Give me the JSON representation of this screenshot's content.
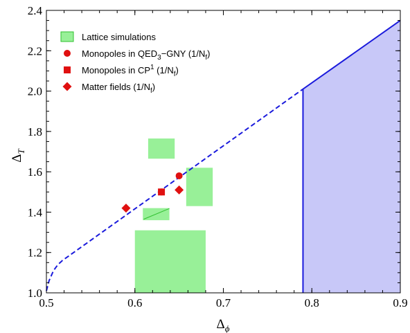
{
  "chart_data": {
    "type": "scatter",
    "xlim": [
      0.5,
      0.9
    ],
    "ylim": [
      1.0,
      2.4
    ],
    "xticks": [
      0.5,
      0.6,
      0.7,
      0.8,
      0.9
    ],
    "xtick_labels": [
      "0.5",
      "0.6",
      "0.7",
      "0.8",
      "0.9"
    ],
    "yticks": [
      1.0,
      1.2,
      1.4,
      1.6,
      1.8,
      2.0,
      2.2,
      2.4
    ],
    "ytick_labels": [
      "1.0",
      "1.2",
      "1.4",
      "1.6",
      "1.8",
      "2.0",
      "2.2",
      "2.4"
    ],
    "minor_x_step": 0.02,
    "minor_y_step": 0.05,
    "xlabel_main": "Δ",
    "xlabel_sub": "ϕ",
    "ylabel_main": "Δ",
    "ylabel_sub": "T",
    "colors": {
      "lattice_fill": "#98f098",
      "lattice_line": "#30c030",
      "marker": "#e01010",
      "bound": "#1a1adc",
      "shaded": "#c8c8f8"
    },
    "lattice_boxes": [
      {
        "x": [
          0.615,
          0.645
        ],
        "y": [
          1.665,
          1.765
        ]
      },
      {
        "x": [
          0.658,
          0.688
        ],
        "y": [
          1.43,
          1.62
        ]
      },
      {
        "x": [
          0.609,
          0.639
        ],
        "y": [
          1.36,
          1.42
        ]
      },
      {
        "x": [
          0.6,
          0.68
        ],
        "y": [
          1.0,
          1.31
        ]
      }
    ],
    "lattice_line": {
      "x": [
        0.61,
        0.639
      ],
      "y": [
        1.365,
        1.418
      ]
    },
    "series": [
      {
        "marker": "circle",
        "points": [
          {
            "x": 0.63,
            "y": 1.5
          },
          {
            "x": 0.65,
            "y": 1.58
          }
        ]
      },
      {
        "marker": "square",
        "points": [
          {
            "x": 0.63,
            "y": 1.5
          }
        ]
      },
      {
        "marker": "diamond",
        "points": [
          {
            "x": 0.59,
            "y": 1.42
          },
          {
            "x": 0.65,
            "y": 1.51
          }
        ]
      }
    ],
    "dashed_bound": {
      "x": [
        0.5,
        0.503,
        0.508,
        0.513,
        0.518,
        0.79
      ],
      "y": [
        1.01,
        1.06,
        1.11,
        1.14,
        1.16,
        2.01
      ]
    },
    "solid_bound": {
      "x": [
        0.79,
        0.9
      ],
      "y": [
        2.01,
        2.35
      ]
    },
    "vertical_bound": {
      "x": 0.79,
      "y": [
        1.0,
        2.01
      ]
    },
    "shaded_region": {
      "x": [
        0.79,
        0.79,
        0.9,
        0.9
      ],
      "y": [
        1.0,
        2.01,
        2.35,
        1.0
      ]
    },
    "legend_placement": "top-left",
    "legend": [
      {
        "label": "Lattice simulations",
        "symbol": "box"
      },
      {
        "label_main": "Monopoles in QED",
        "label_sub": "3",
        "label_rest": "−GNY (1/N",
        "label_sub2": "f",
        "label_end": ")",
        "symbol": "circle"
      },
      {
        "label_main": "Monopoles in CP",
        "label_sup": "1",
        "label_rest": " (1/N",
        "label_sub2": "f",
        "label_end": ")",
        "symbol": "square"
      },
      {
        "label_main": "Matter fields (1/N",
        "label_sub2": "f",
        "label_end": ")",
        "symbol": "diamond"
      }
    ]
  }
}
